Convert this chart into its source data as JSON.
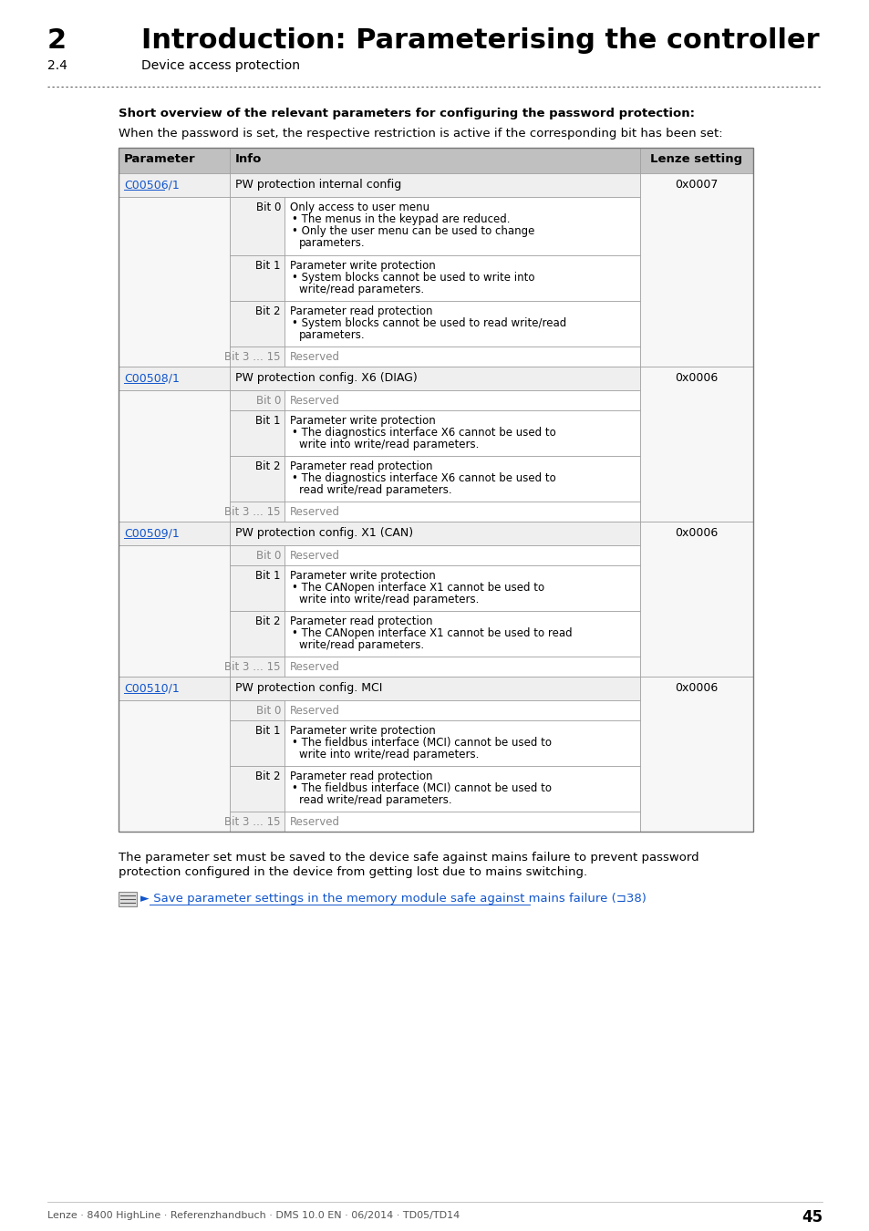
{
  "page_bg": "#ffffff",
  "chapter_num": "2",
  "chapter_title": "Introduction: Parameterising the controller",
  "section_num": "2.4",
  "section_title": "Device access protection",
  "bold_intro": "Short overview of the relevant parameters for configuring the password protection:",
  "intro_text": "When the password is set, the respective restriction is active if the corresponding bit has been set:",
  "header_bg": "#c0c0c0",
  "link_color": "#1155cc",
  "rows": [
    {
      "param": "C00506/1",
      "main_info": "PW protection internal config",
      "lenze": "0x0007",
      "sub_rows": [
        {
          "bit": "Bit 0",
          "text": "Only access to user menu\n• The menus in the keypad are reduced.\n• Only the user menu can be used to change\n   parameters."
        },
        {
          "bit": "Bit 1",
          "text": "Parameter write protection\n• System blocks cannot be used to write into\n   write/read parameters."
        },
        {
          "bit": "Bit 2",
          "text": "Parameter read protection\n• System blocks cannot be used to read write/read\n   parameters."
        },
        {
          "bit": "Bit 3 … 15",
          "text": "Reserved"
        }
      ]
    },
    {
      "param": "C00508/1",
      "main_info": "PW protection config. X6 (DIAG)",
      "lenze": "0x0006",
      "sub_rows": [
        {
          "bit": "Bit 0",
          "text": "Reserved"
        },
        {
          "bit": "Bit 1",
          "text": "Parameter write protection\n• The diagnostics interface X6 cannot be used to\n   write into write/read parameters."
        },
        {
          "bit": "Bit 2",
          "text": "Parameter read protection\n• The diagnostics interface X6 cannot be used to\n   read write/read parameters."
        },
        {
          "bit": "Bit 3 … 15",
          "text": "Reserved"
        }
      ]
    },
    {
      "param": "C00509/1",
      "main_info": "PW protection config. X1 (CAN)",
      "lenze": "0x0006",
      "sub_rows": [
        {
          "bit": "Bit 0",
          "text": "Reserved"
        },
        {
          "bit": "Bit 1",
          "text": "Parameter write protection\n• The CANopen interface X1 cannot be used to\n   write into write/read parameters."
        },
        {
          "bit": "Bit 2",
          "text": "Parameter read protection\n• The CANopen interface X1 cannot be used to read\n   write/read parameters."
        },
        {
          "bit": "Bit 3 … 15",
          "text": "Reserved"
        }
      ]
    },
    {
      "param": "C00510/1",
      "main_info": "PW protection config. MCI",
      "lenze": "0x0006",
      "sub_rows": [
        {
          "bit": "Bit 0",
          "text": "Reserved"
        },
        {
          "bit": "Bit 1",
          "text": "Parameter write protection\n• The fieldbus interface (MCI) cannot be used to\n   write into write/read parameters."
        },
        {
          "bit": "Bit 2",
          "text": "Parameter read protection\n• The fieldbus interface (MCI) cannot be used to\n   read write/read parameters."
        },
        {
          "bit": "Bit 3 … 15",
          "text": "Reserved"
        }
      ]
    }
  ],
  "footer_note_line1": "The parameter set must be saved to the device safe against mains failure to prevent password",
  "footer_note_line2": "protection configured in the device from getting lost due to mains switching.",
  "link_arrow": "►",
  "link_text": " Save parameter settings in the memory module safe against mains failure (⊐38)",
  "footer_text": "Lenze · 8400 HighLine · Referenzhandbuch · DMS 10.0 EN · 06/2014 · TD05/TD14",
  "page_num": "45"
}
